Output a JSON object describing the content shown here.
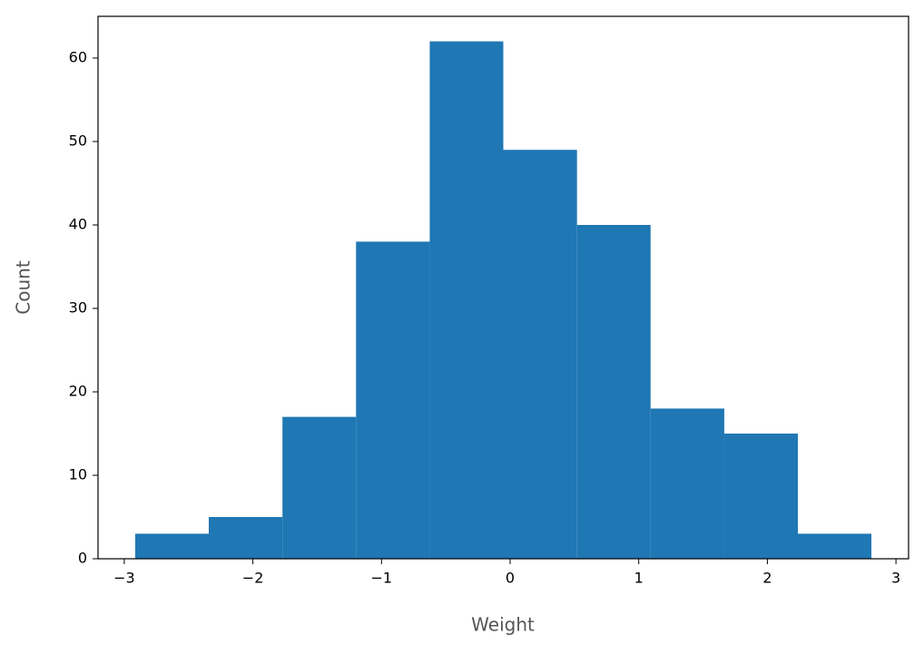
{
  "chart_data": {
    "type": "histogram",
    "x_label": "Weight",
    "y_label": "Count",
    "color": "#1f77b4",
    "bins": [
      -2.915,
      -2.343,
      -1.77,
      -1.198,
      -0.625,
      -0.053,
      0.52,
      1.092,
      1.665,
      2.237,
      2.809
    ],
    "values": [
      3,
      5,
      17,
      38,
      62,
      49,
      40,
      18,
      15,
      3
    ],
    "xlim": [
      -3.204,
      3.098
    ],
    "ylim": [
      0,
      65
    ],
    "xticks": [
      {
        "value": -3,
        "label": "−3"
      },
      {
        "value": -2,
        "label": "−2"
      },
      {
        "value": -1,
        "label": "−1"
      },
      0,
      1,
      2,
      3
    ],
    "yticks": [
      0,
      10,
      20,
      30,
      40,
      50,
      60
    ],
    "grid": false
  }
}
